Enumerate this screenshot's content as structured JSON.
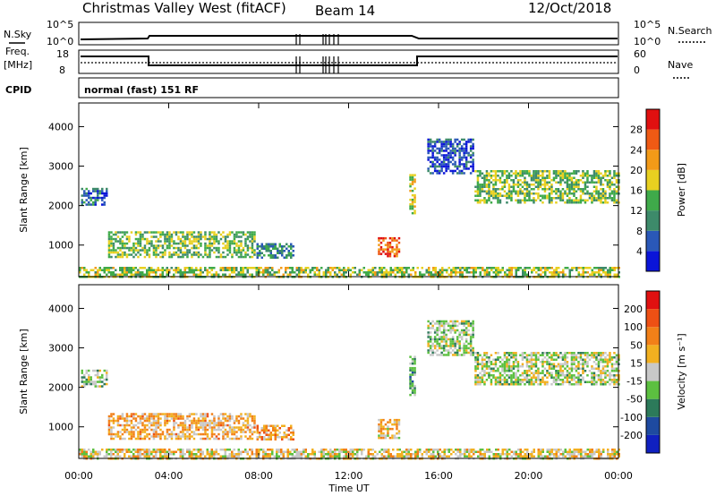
{
  "header": {
    "title": "Christmas Valley West (fitACF)",
    "beam": "Beam 14",
    "date": "12/Oct/2018"
  },
  "strips": {
    "nsky_label": "N.Sky",
    "nsearch_label": "N.Search",
    "freq_label_top": "Freq.",
    "freq_label_unit": "[MHz]",
    "nave_label": "Nave",
    "cpid_label": "CPID",
    "cpid_text": "normal (fast) 151 RF",
    "noise_left_ticks": [
      "10^5",
      "10^0"
    ],
    "noise_right_ticks": [
      "10^5",
      "10^0"
    ],
    "freq_left_ticks": [
      "18",
      "8"
    ],
    "nave_right_ticks": [
      "60",
      "0"
    ]
  },
  "chart_data": [
    {
      "type": "heatmap",
      "name": "power",
      "ylabel": "Slant Range [km]",
      "ylim": [
        200,
        4600
      ],
      "yticks": [
        "1000",
        "2000",
        "3000",
        "4000"
      ],
      "xlim_hours": [
        0,
        24
      ],
      "colorbar": {
        "label": "Power [dB]",
        "ticks": [
          "4",
          "8",
          "12",
          "16",
          "20",
          "24",
          "28"
        ],
        "colors": [
          "#0a14d8",
          "#2a58b8",
          "#3d8a6a",
          "#3faa4a",
          "#e8d020",
          "#f29a18",
          "#ef5a14",
          "#e01010"
        ]
      },
      "regions": [
        {
          "t0": 0.1,
          "t1": 1.2,
          "r0": 2000,
          "r1": 2450,
          "level": 0.25
        },
        {
          "t0": 1.3,
          "t1": 7.8,
          "r0": 700,
          "r1": 1350,
          "level": 0.45
        },
        {
          "t0": 7.9,
          "t1": 9.5,
          "r0": 700,
          "r1": 1050,
          "level": 0.3
        },
        {
          "t0": 13.3,
          "t1": 14.2,
          "r0": 700,
          "r1": 1200,
          "level": 0.82
        },
        {
          "t0": 14.7,
          "t1": 14.95,
          "r0": 1800,
          "r1": 2800,
          "level": 0.55
        },
        {
          "t0": 15.5,
          "t1": 17.5,
          "r0": 2800,
          "r1": 3700,
          "level": 0.15
        },
        {
          "t0": 17.6,
          "t1": 24.0,
          "r0": 2100,
          "r1": 2900,
          "level": 0.45
        },
        {
          "t0": 0.0,
          "t1": 24.0,
          "r0": 220,
          "r1": 450,
          "level": 0.5
        }
      ]
    },
    {
      "type": "heatmap",
      "name": "velocity",
      "ylabel": "Slant Range [km]",
      "ylim": [
        200,
        4600
      ],
      "yticks": [
        "1000",
        "2000",
        "3000",
        "4000"
      ],
      "xlim_hours": [
        0,
        24
      ],
      "xlabel": "Time UT",
      "xticks": [
        "00:00",
        "04:00",
        "08:00",
        "12:00",
        "16:00",
        "20:00",
        "00:00"
      ],
      "colorbar": {
        "label": "Velocity [m s⁻¹]",
        "ticks": [
          "200",
          "100",
          "50",
          "15",
          "-15",
          "-50",
          "-100",
          "-200"
        ],
        "colors": [
          "#1020c0",
          "#1e4aa0",
          "#2c7a5a",
          "#5cc040",
          "#c8c8c8",
          "#f2b020",
          "#f28018",
          "#ee5014",
          "#e01010"
        ]
      },
      "regions": [
        {
          "t0": 0.1,
          "t1": 1.2,
          "r0": 2000,
          "r1": 2450,
          "level": 0.45
        },
        {
          "t0": 1.3,
          "t1": 7.8,
          "r0": 700,
          "r1": 1350,
          "level": 0.62
        },
        {
          "t0": 7.9,
          "t1": 9.5,
          "r0": 700,
          "r1": 1050,
          "level": 0.68
        },
        {
          "t0": 13.3,
          "t1": 14.2,
          "r0": 700,
          "r1": 1200,
          "level": 0.6
        },
        {
          "t0": 14.7,
          "t1": 14.95,
          "r0": 1800,
          "r1": 2800,
          "level": 0.35
        },
        {
          "t0": 15.5,
          "t1": 17.5,
          "r0": 2800,
          "r1": 3700,
          "level": 0.45
        },
        {
          "t0": 17.6,
          "t1": 24.0,
          "r0": 2100,
          "r1": 2900,
          "level": 0.48
        },
        {
          "t0": 0.0,
          "t1": 24.0,
          "r0": 220,
          "r1": 450,
          "level": 0.55
        }
      ]
    }
  ]
}
